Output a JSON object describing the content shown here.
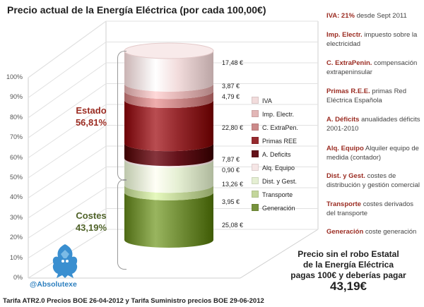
{
  "title": "Precio actual de la Energía Eléctrica (por cada 100,00€)",
  "chart_data": {
    "type": "bar",
    "stacked": true,
    "ylim": [
      0,
      100
    ],
    "y_ticks": [
      "0%",
      "10%",
      "20%",
      "30%",
      "40%",
      "50%",
      "60%",
      "70%",
      "80%",
      "90%",
      "100%"
    ],
    "segments": [
      {
        "name": "Generación",
        "value": 25.08,
        "label": "25,08 €",
        "color": "#76923c"
      },
      {
        "name": "Transporte",
        "value": 3.95,
        "label": "3,95 €",
        "color": "#c3d69b"
      },
      {
        "name": "Dist. y Gest.",
        "value": 13.26,
        "label": "13,26 €",
        "color": "#e5efd3"
      },
      {
        "name": "Alq. Equipo",
        "value": 0.9,
        "label": "0,90 €",
        "color": "#f6e6e6"
      },
      {
        "name": "A. Deficits",
        "value": 7.87,
        "label": "7,87 €",
        "color": "#64121a"
      },
      {
        "name": "Primas REE",
        "value": 22.8,
        "label": "22,80 €",
        "color": "#962a2e"
      },
      {
        "name": "C. ExtraPen.",
        "value": 4.79,
        "label": "4,79 €",
        "color": "#cc8a8a"
      },
      {
        "name": "Imp. Electr.",
        "value": 3.87,
        "label": "3,87 €",
        "color": "#e2b6b6"
      },
      {
        "name": "IVA",
        "value": 17.48,
        "label": "17,48 €",
        "color": "#f2dcdc"
      }
    ],
    "legend_order": [
      "IVA",
      "Imp. Electr.",
      "C. ExtraPen.",
      "Primas REE",
      "A. Deficits",
      "Alq. Equipo",
      "Dist. y Gest.",
      "Transporte",
      "Generación"
    ],
    "groups": [
      {
        "name": "Estado",
        "pct": "56,81%",
        "color": "#9b2c22"
      },
      {
        "name": "Costes",
        "pct": "43,19%",
        "color": "#4f6228"
      }
    ]
  },
  "descriptions": [
    {
      "term": "IVA: 21%",
      "text": "desde Sept 2011"
    },
    {
      "term": "Imp. Electr.",
      "text": "impuesto sobre la electricidad"
    },
    {
      "term": "C. ExtraPenin.",
      "text": "compensación extrapeninsular"
    },
    {
      "term": "Primas R.E.E.",
      "text": "primas Red Eléctrica Española"
    },
    {
      "term": "A. Déficits",
      "text": "anualidades déficits 2001-2010"
    },
    {
      "term": "Alq. Equipo",
      "text": "Alquiler equipo de medida (contador)"
    },
    {
      "term": "Dist. y Gest.",
      "text": "costes de distribución y gestión comercial"
    },
    {
      "term": "Transporte",
      "text": "costes derivados del transporte"
    },
    {
      "term": "Generación",
      "text": "coste generación"
    }
  ],
  "promo": {
    "line1": "Precio sin el robo Estatal",
    "line2": "de la Energía Eléctrica",
    "line3": "pagas 100€ y deberías pagar",
    "value": "43,19€"
  },
  "handle": "@Absolutexe",
  "footer": "Tarifa ATR2.0 Precios BOE 26-04-2012 y Tarifa Suministro precios BOE 29-06-2012"
}
